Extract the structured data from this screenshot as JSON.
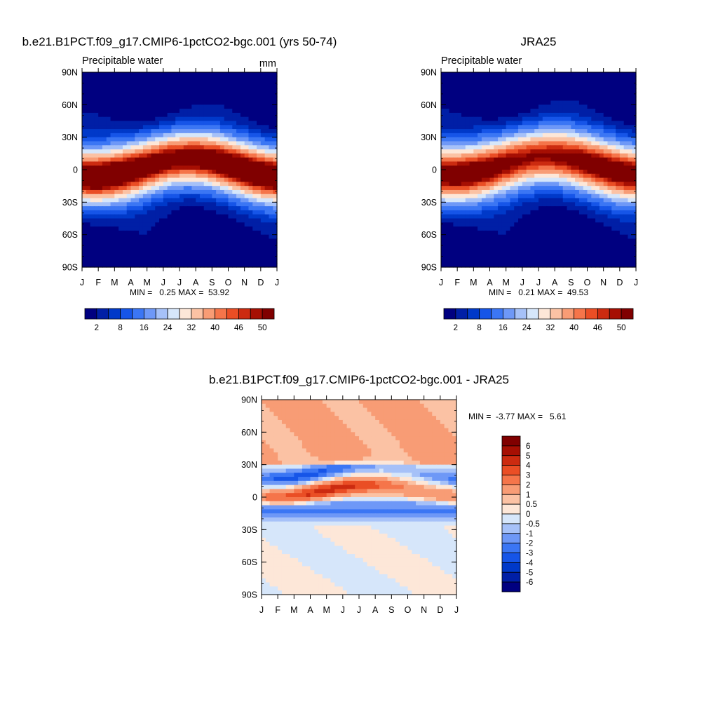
{
  "palette_main": [
    "#000080",
    "#001fa6",
    "#0039c9",
    "#1655e8",
    "#3b76f4",
    "#6e98f7",
    "#a6c1f8",
    "#d6e6fa",
    "#fde7d8",
    "#fbc2a4",
    "#f89c75",
    "#f5754a",
    "#ea4e25",
    "#cc2b10",
    "#a60f03",
    "#800000"
  ],
  "palette_diff": [
    "#000080",
    "#001fa6",
    "#0039c9",
    "#1655e8",
    "#3b76f4",
    "#6e98f7",
    "#a6c1f8",
    "#d6e6fa",
    "#fde7d8",
    "#fbc2a4",
    "#f89c75",
    "#f5754a",
    "#ea4e25",
    "#cc2b10",
    "#a60f03",
    "#800000"
  ],
  "chart_data": [
    {
      "type": "heatmap",
      "title": "b.e21.B1PCT.f09_g17.CMIP6-1pctCO2-bgc.001 (yrs 50-74)",
      "subtitle": "Precipitable water",
      "units": "mm",
      "x_ticks": [
        "J",
        "F",
        "M",
        "A",
        "M",
        "J",
        "J",
        "A",
        "S",
        "O",
        "N",
        "D",
        "J"
      ],
      "y_ticks": [
        "90N",
        "60N",
        "30N",
        "0",
        "30S",
        "60S",
        "90S"
      ],
      "stats": "MIN =   0.25 MAX =  53.92",
      "levels": [
        2,
        5,
        8,
        11,
        16,
        20,
        24,
        28,
        32,
        36,
        40,
        43,
        46,
        48,
        50
      ],
      "level_labels": [
        "2",
        "8",
        "16",
        "24",
        "32",
        "40",
        "46",
        "50"
      ],
      "field": {
        "amp": 53,
        "equator_shift": 2,
        "seasonal_amp": 9,
        "width": 23
      }
    },
    {
      "type": "heatmap",
      "title": "JRA25",
      "subtitle": "Precipitable water",
      "units": "",
      "x_ticks": [
        "J",
        "F",
        "M",
        "A",
        "M",
        "J",
        "J",
        "A",
        "S",
        "O",
        "N",
        "D",
        "J"
      ],
      "y_ticks": [
        "90N",
        "60N",
        "30N",
        "0",
        "30S",
        "60S",
        "90S"
      ],
      "stats": "MIN =   0.21 MAX =  49.53",
      "levels": [
        2,
        5,
        8,
        11,
        16,
        20,
        24,
        28,
        32,
        36,
        40,
        43,
        46,
        48,
        50
      ],
      "level_labels": [
        "2",
        "8",
        "16",
        "24",
        "32",
        "40",
        "46",
        "50"
      ],
      "field": {
        "amp": 49,
        "equator_shift": 4,
        "seasonal_amp": 9,
        "width": 24
      }
    },
    {
      "type": "heatmap",
      "title": "b.e21.B1PCT.f09_g17.CMIP6-1pctCO2-bgc.001 - JRA25",
      "subtitle": "",
      "units": "",
      "x_ticks": [
        "J",
        "F",
        "M",
        "A",
        "M",
        "J",
        "J",
        "A",
        "S",
        "O",
        "N",
        "D",
        "J"
      ],
      "y_ticks": [
        "90N",
        "60N",
        "30N",
        "0",
        "30S",
        "60S",
        "90S"
      ],
      "stats": "MIN =  -3.77 MAX =   5.61",
      "levels": [
        -6,
        -5,
        -4,
        -3,
        -2,
        -1,
        -0.5,
        0,
        0.5,
        1,
        2,
        3,
        4,
        5,
        6
      ],
      "level_labels": [
        "6",
        "5",
        "4",
        "3",
        "2",
        "1",
        "0.5",
        "0",
        "-0.5",
        "-1",
        "-2",
        "-3",
        "-4",
        "-5",
        "-6"
      ]
    }
  ]
}
